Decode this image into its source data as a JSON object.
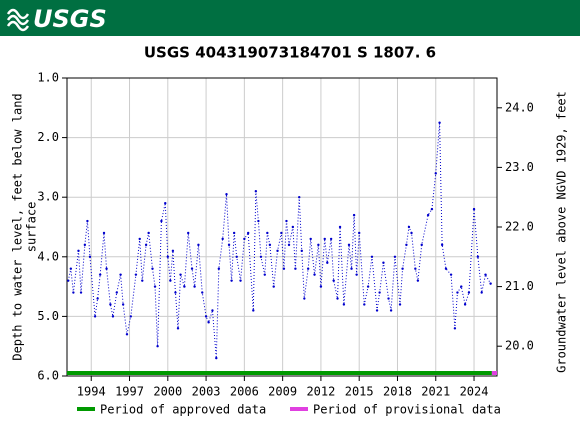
{
  "logo_text": "USGS",
  "chart_data": {
    "type": "line",
    "title": "USGS 404319073184701 S  1807. 6",
    "ylabel": [
      "Depth to water level, feet below land",
      "surface"
    ],
    "y2label": "Groundwater level above NGVD 1929, feet",
    "xlim": [
      1992.1,
      2025.8
    ],
    "xticks": [
      1994,
      1997,
      2000,
      2003,
      2006,
      2009,
      2012,
      2015,
      2018,
      2021,
      2024
    ],
    "ylim": [
      6.0,
      1.0
    ],
    "yticks": [
      {
        "value": 1.0,
        "label": "1.0"
      },
      {
        "value": 2.0,
        "label": "2.0"
      },
      {
        "value": 3.0,
        "label": "3.0"
      },
      {
        "value": 4.0,
        "label": "4.0"
      },
      {
        "value": 5.0,
        "label": "5.0"
      },
      {
        "value": 6.0,
        "label": "6.0"
      }
    ],
    "y2lim": [
      19.5,
      24.5
    ],
    "y2ticks": [
      {
        "value": 20.0,
        "label": "20.0"
      },
      {
        "value": 21.0,
        "label": "21.0"
      },
      {
        "value": 22.0,
        "label": "22.0"
      },
      {
        "value": 23.0,
        "label": "23.0"
      },
      {
        "value": 24.0,
        "label": "24.0"
      }
    ],
    "grid": true,
    "series": [
      {
        "name": "Depth to water level",
        "color": "#0000cc",
        "x": [
          1992.2,
          1992.4,
          1992.6,
          1993.0,
          1993.2,
          1993.5,
          1993.7,
          1993.9,
          1994.3,
          1994.5,
          1994.7,
          1995.0,
          1995.2,
          1995.5,
          1995.7,
          1996.0,
          1996.3,
          1996.5,
          1996.8,
          1997.1,
          1997.5,
          1997.8,
          1998.0,
          1998.3,
          1998.5,
          1998.8,
          1999.0,
          1999.2,
          1999.5,
          1999.8,
          2000.0,
          2000.2,
          2000.4,
          2000.6,
          2000.8,
          2001.0,
          2001.3,
          2001.6,
          2001.9,
          2002.1,
          2002.4,
          2002.7,
          2003.0,
          2003.2,
          2003.5,
          2003.8,
          2004.0,
          2004.3,
          2004.6,
          2004.8,
          2005.0,
          2005.2,
          2005.4,
          2005.7,
          2006.0,
          2006.3,
          2006.7,
          2006.9,
          2007.1,
          2007.3,
          2007.6,
          2007.8,
          2008.0,
          2008.3,
          2008.6,
          2008.9,
          2009.1,
          2009.3,
          2009.5,
          2009.8,
          2010.0,
          2010.3,
          2010.5,
          2010.7,
          2011.0,
          2011.2,
          2011.5,
          2011.8,
          2012.0,
          2012.3,
          2012.5,
          2012.8,
          2013.0,
          2013.3,
          2013.5,
          2013.8,
          2014.2,
          2014.4,
          2014.6,
          2014.8,
          2015.0,
          2015.4,
          2015.7,
          2016.0,
          2016.4,
          2016.6,
          2016.9,
          2017.3,
          2017.5,
          2017.8,
          2018.2,
          2018.4,
          2018.7,
          2018.9,
          2019.1,
          2019.4,
          2019.6,
          2019.9,
          2020.4,
          2020.7,
          2021.0,
          2021.3,
          2021.5,
          2021.8,
          2022.2,
          2022.5,
          2022.7,
          2023.0,
          2023.3,
          2023.6,
          2024.0,
          2024.3,
          2024.6,
          2024.9,
          2025.3
        ],
        "values": [
          4.4,
          4.2,
          4.6,
          3.9,
          4.6,
          3.8,
          3.4,
          4.0,
          5.0,
          4.7,
          4.3,
          3.6,
          4.2,
          4.8,
          5.0,
          4.6,
          4.3,
          4.8,
          5.3,
          5.0,
          4.3,
          3.7,
          4.4,
          3.8,
          3.6,
          4.2,
          4.5,
          5.5,
          3.4,
          3.1,
          4.0,
          4.4,
          3.9,
          4.6,
          5.2,
          4.3,
          4.5,
          3.6,
          4.2,
          4.5,
          3.8,
          4.6,
          5.0,
          5.1,
          4.9,
          5.7,
          4.2,
          3.7,
          2.95,
          3.8,
          4.4,
          3.6,
          4.0,
          4.4,
          3.7,
          3.6,
          4.9,
          2.9,
          3.4,
          4.0,
          4.3,
          3.6,
          3.8,
          4.5,
          3.9,
          3.6,
          4.2,
          3.4,
          3.8,
          3.5,
          4.2,
          3.0,
          3.9,
          4.7,
          4.2,
          3.7,
          4.3,
          3.8,
          4.5,
          3.7,
          4.1,
          3.7,
          4.4,
          4.7,
          3.5,
          4.8,
          3.8,
          4.2,
          3.3,
          4.3,
          3.6,
          4.8,
          4.5,
          4.0,
          4.9,
          4.6,
          4.1,
          4.7,
          4.9,
          4.0,
          4.8,
          4.2,
          3.8,
          3.5,
          3.6,
          4.2,
          4.4,
          3.8,
          3.3,
          3.2,
          2.6,
          1.75,
          3.8,
          4.2,
          4.3,
          5.2,
          4.6,
          4.5,
          4.8,
          4.6,
          3.2,
          4.0,
          4.6,
          4.3,
          4.45
        ]
      }
    ],
    "periods": [
      {
        "name": "Period of approved data",
        "color": "#009900",
        "range": [
          1992.1,
          2025.4
        ]
      },
      {
        "name": "Period of provisional data",
        "color": "#e040e0",
        "range": [
          2025.4,
          2025.8
        ]
      }
    ]
  }
}
